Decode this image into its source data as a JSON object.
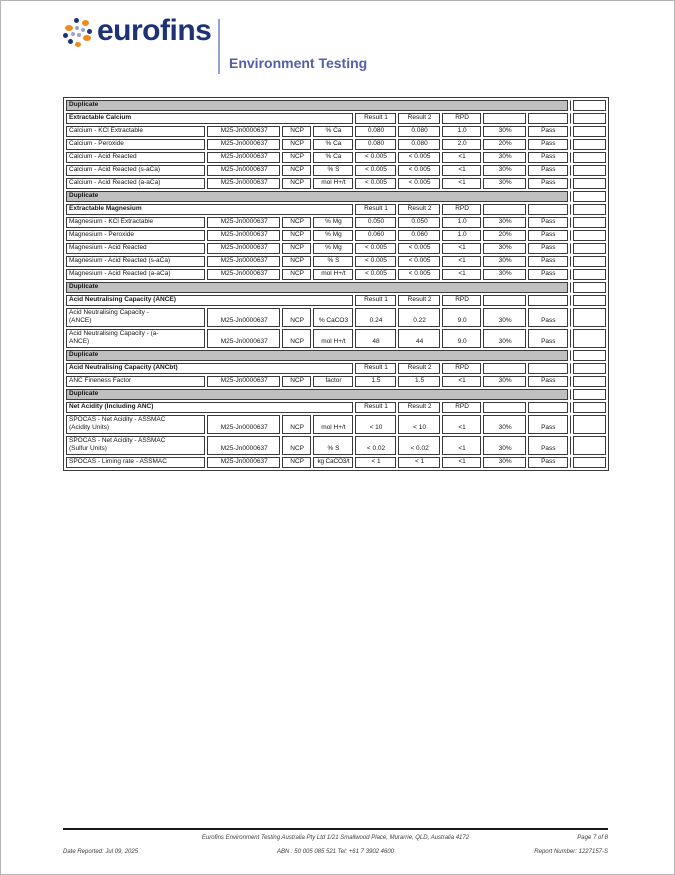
{
  "brand": {
    "name": "eurofins",
    "division": "Environment Testing",
    "navy": "#1e3278",
    "orange": "#f08a1e",
    "lavender": "#9aa3d4",
    "division_blue": "#5560a8"
  },
  "table": {
    "duplicate_label": "Duplicate",
    "result_headers": [
      "Result 1",
      "Result 2",
      "RPD"
    ],
    "sections": [
      {
        "title": "Extractable Calcium",
        "rows": [
          {
            "param": "Calcium - KCl Extractable",
            "sample": "M25-Jn0000637",
            "lab": "NCP",
            "unit": "% Ca",
            "result1": "0.080",
            "result2": "0.080",
            "rpd": "1.0",
            "criteria": "30%",
            "status": "Pass"
          },
          {
            "param": "Calcium - Peroxide",
            "sample": "M25-Jn0000637",
            "lab": "NCP",
            "unit": "% Ca",
            "result1": "0.080",
            "result2": "0.080",
            "rpd": "2.0",
            "criteria": "20%",
            "status": "Pass"
          },
          {
            "param": "Calcium - Acid Reacted",
            "sample": "M25-Jn0000637",
            "lab": "NCP",
            "unit": "% Ca",
            "result1": "< 0.005",
            "result2": "< 0.005",
            "rpd": "<1",
            "criteria": "30%",
            "status": "Pass"
          },
          {
            "param": "Calcium - Acid Reacted (s-aCa)",
            "sample": "M25-Jn0000637",
            "lab": "NCP",
            "unit": "% S",
            "result1": "< 0.005",
            "result2": "< 0.005",
            "rpd": "<1",
            "criteria": "30%",
            "status": "Pass"
          },
          {
            "param": "Calcium - Acid Reacted (a-aCa)",
            "sample": "M25-Jn0000637",
            "lab": "NCP",
            "unit": "mol H+/t",
            "result1": "< 0.005",
            "result2": "< 0.005",
            "rpd": "<1",
            "criteria": "30%",
            "status": "Pass"
          }
        ]
      },
      {
        "title": "Extractable Magnesium",
        "rows": [
          {
            "param": "Magnesium - KCl Extractable",
            "sample": "M25-Jn0000637",
            "lab": "NCP",
            "unit": "% Mg",
            "result1": "0.050",
            "result2": "0.050",
            "rpd": "1.0",
            "criteria": "30%",
            "status": "Pass"
          },
          {
            "param": "Magnesium - Peroxide",
            "sample": "M25-Jn0000637",
            "lab": "NCP",
            "unit": "% Mg",
            "result1": "0.060",
            "result2": "0.060",
            "rpd": "1.0",
            "criteria": "20%",
            "status": "Pass"
          },
          {
            "param": "Magnesium - Acid Reacted",
            "sample": "M25-Jn0000637",
            "lab": "NCP",
            "unit": "% Mg",
            "result1": "< 0.005",
            "result2": "< 0.005",
            "rpd": "<1",
            "criteria": "30%",
            "status": "Pass"
          },
          {
            "param": "Magnesium - Acid Reacted (s-aCa)",
            "sample": "M25-Jn0000637",
            "lab": "NCP",
            "unit": "% S",
            "result1": "< 0.005",
            "result2": "< 0.005",
            "rpd": "<1",
            "criteria": "30%",
            "status": "Pass"
          },
          {
            "param": "Magnesium - Acid Reacted (a-aCa)",
            "sample": "M25-Jn0000637",
            "lab": "NCP",
            "unit": "mol H+/t",
            "result1": "< 0.005",
            "result2": "< 0.005",
            "rpd": "<1",
            "criteria": "30%",
            "status": "Pass"
          }
        ]
      },
      {
        "title": "Acid Neutralising Capacity (ANCE)",
        "rows": [
          {
            "param": "Acid Neutralising Capacity -\n(ANCE)",
            "sample": "M25-Jn0000637",
            "lab": "NCP",
            "unit": "% CaCO3",
            "result1": "0.24",
            "result2": "0.22",
            "rpd": "9.0",
            "criteria": "30%",
            "status": "Pass"
          },
          {
            "param": "Acid Neutralising Capacity - (a-\nANCE)",
            "sample": "M25-Jn0000637",
            "lab": "NCP",
            "unit": "mol H+/t",
            "result1": "48",
            "result2": "44",
            "rpd": "9.0",
            "criteria": "30%",
            "status": "Pass"
          }
        ]
      },
      {
        "title": "Acid Neutralising Capacity (ANCbt)",
        "rows": [
          {
            "param": "ANC Fineness Factor",
            "sample": "M25-Jn0000637",
            "lab": "NCP",
            "unit": "factor",
            "result1": "1.5",
            "result2": "1.5",
            "rpd": "<1",
            "criteria": "30%",
            "status": "Pass"
          }
        ]
      },
      {
        "title": "Net Acidity (Including ANC)",
        "rows": [
          {
            "param": "SPOCAS - Net Acidity - ASSMAC\n(Acidity Units)",
            "sample": "M25-Jn0000637",
            "lab": "NCP",
            "unit": "mol H+/t",
            "result1": "< 10",
            "result2": "< 10",
            "rpd": "<1",
            "criteria": "30%",
            "status": "Pass"
          },
          {
            "param": "SPOCAS - Net Acidity - ASSMAC\n(Sulfur Units)",
            "sample": "M25-Jn0000637",
            "lab": "NCP",
            "unit": "% S",
            "result1": "< 0.02",
            "result2": "< 0.02",
            "rpd": "<1",
            "criteria": "30%",
            "status": "Pass"
          },
          {
            "param": "SPOCAS - Liming rate - ASSMAC",
            "sample": "M25-Jn0000637",
            "lab": "NCP",
            "unit": "kg CaCO3/t",
            "unit_small": true,
            "result1": "< 1",
            "result2": "< 1",
            "rpd": "<1",
            "criteria": "30%",
            "status": "Pass"
          }
        ]
      }
    ]
  },
  "footer": {
    "address": "Eurofins Environment Testing Australia Pty Ltd 1/21 Smallwood Place, Murarrie, QLD, Australia 4172",
    "page_label": "Page 7 of 8",
    "date_reported": "Date Reported: Jul 09, 2025",
    "abn_tel": "ABN : 50 005 085 521 Tel: +61 7 3902 4600",
    "report_number": "Report Number: 1227157-S"
  }
}
